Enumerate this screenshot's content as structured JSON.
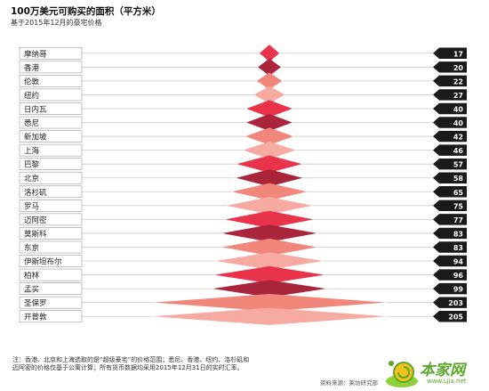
{
  "title": "100万美元可购买的面积（平方米）",
  "subtitle": "基于2015年12月的豪宅价格",
  "footnote": "注：香港、北京和上海选取的是“超级豪宅”的价格范围；悉尼、香港、纽约、洛杉矶和迈阿密的价格仅基于公寓计算；所有货币数据均采用2015年12月31日的实时汇率。",
  "source": "资料来源：莱坊研究部",
  "watermark": {
    "brand": "本家网",
    "url": "www.Ljia.net"
  },
  "colors": {
    "dark": "#a8253c",
    "mid": "#e8334a",
    "light": "#f0877a",
    "pale": "#f6aaa2",
    "number_bg": "#1a1a1a"
  },
  "chart_data": {
    "type": "bar",
    "title": "100万美元可购买的面积（平方米）",
    "subtitle": "基于2015年12月的豪宅价格",
    "categories": [
      "摩纳哥",
      "香港",
      "伦敦",
      "纽约",
      "日内瓦",
      "悉尼",
      "新加坡",
      "上海",
      "巴黎",
      "北京",
      "洛杉矶",
      "罗马",
      "迈阿密",
      "莫斯科",
      "东京",
      "伊斯坦布尔",
      "柏林",
      "孟买",
      "圣保罗",
      "开普敦"
    ],
    "values": [
      17,
      20,
      22,
      27,
      40,
      40,
      42,
      46,
      57,
      58,
      65,
      75,
      77,
      83,
      83,
      94,
      96,
      99,
      203,
      205
    ],
    "color_cycle": [
      "mid",
      "dark",
      "light",
      "pale"
    ],
    "ylim": [
      0,
      205
    ]
  }
}
